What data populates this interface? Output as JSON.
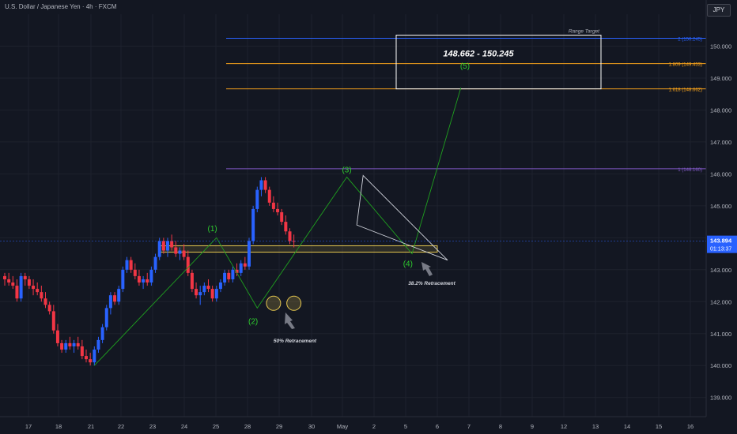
{
  "header": {
    "title": "U.S. Dollar / Japanese Yen · 4h · FXCM",
    "currency": "JPY"
  },
  "colors": {
    "up": "#2962ff",
    "down": "#f23645",
    "wave": "#1fa01f",
    "wave_label": "#2ecc2e",
    "zone": "#e6c84f",
    "fib_blue": "#2962ff",
    "fib_orange": "#f7a21b",
    "fib_purple": "#7e57c2",
    "background": "#131722"
  },
  "chart_data": {
    "type": "candlestick",
    "ylim": [
      138.4,
      151.0
    ],
    "y_ticks": [
      "139.000",
      "140.000",
      "141.000",
      "142.000",
      "143.000",
      "144.000",
      "145.000",
      "146.000",
      "147.000",
      "148.000",
      "149.000",
      "150.000"
    ],
    "x_ticks": [
      "17",
      "18",
      "21",
      "22",
      "23",
      "24",
      "25",
      "28",
      "29",
      "30",
      "May",
      "2",
      "5",
      "6",
      "7",
      "8",
      "9",
      "12",
      "13",
      "14",
      "15",
      "16"
    ],
    "candles": [
      [
        142.8,
        142.9,
        142.5,
        142.7
      ],
      [
        142.7,
        142.9,
        142.5,
        142.6
      ],
      [
        142.6,
        142.8,
        142.4,
        142.5
      ],
      [
        142.5,
        142.7,
        142.0,
        142.1
      ],
      [
        142.1,
        142.9,
        142.0,
        142.8
      ],
      [
        142.8,
        142.9,
        142.5,
        142.7
      ],
      [
        142.7,
        142.8,
        142.4,
        142.5
      ],
      [
        142.5,
        142.7,
        142.2,
        142.4
      ],
      [
        142.4,
        142.6,
        142.2,
        142.3
      ],
      [
        142.3,
        142.5,
        142.0,
        142.1
      ],
      [
        142.1,
        142.3,
        141.8,
        141.9
      ],
      [
        141.9,
        142.0,
        141.6,
        141.7
      ],
      [
        141.7,
        141.9,
        141.0,
        141.1
      ],
      [
        141.1,
        141.3,
        140.6,
        140.7
      ],
      [
        140.7,
        140.8,
        140.4,
        140.5
      ],
      [
        140.5,
        140.8,
        140.4,
        140.7
      ],
      [
        140.7,
        140.9,
        140.5,
        140.6
      ],
      [
        140.6,
        140.8,
        140.4,
        140.7
      ],
      [
        140.7,
        140.9,
        140.5,
        140.6
      ],
      [
        140.6,
        140.8,
        140.2,
        140.3
      ],
      [
        140.3,
        140.5,
        140.1,
        140.2
      ],
      [
        140.2,
        140.4,
        140.0,
        140.1
      ],
      [
        140.1,
        140.6,
        140.0,
        140.5
      ],
      [
        140.5,
        140.9,
        140.4,
        140.8
      ],
      [
        140.8,
        141.3,
        140.7,
        141.2
      ],
      [
        141.2,
        141.9,
        141.1,
        141.8
      ],
      [
        141.8,
        142.3,
        141.6,
        142.2
      ],
      [
        142.2,
        142.3,
        141.9,
        142.0
      ],
      [
        142.0,
        142.5,
        141.9,
        142.4
      ],
      [
        142.4,
        143.1,
        142.3,
        143.0
      ],
      [
        143.0,
        143.4,
        142.9,
        143.3
      ],
      [
        143.3,
        143.4,
        142.9,
        143.0
      ],
      [
        143.0,
        143.2,
        142.7,
        142.8
      ],
      [
        142.8,
        143.0,
        142.5,
        142.6
      ],
      [
        142.6,
        142.8,
        142.4,
        142.7
      ],
      [
        142.7,
        142.9,
        142.5,
        142.6
      ],
      [
        142.6,
        143.1,
        142.5,
        143.0
      ],
      [
        143.0,
        143.5,
        142.9,
        143.4
      ],
      [
        143.4,
        144.0,
        143.3,
        143.9
      ],
      [
        143.9,
        144.0,
        143.5,
        143.6
      ],
      [
        143.6,
        144.0,
        143.4,
        143.9
      ],
      [
        143.9,
        144.1,
        143.6,
        143.7
      ],
      [
        143.7,
        143.9,
        143.4,
        143.5
      ],
      [
        143.5,
        143.7,
        143.3,
        143.6
      ],
      [
        143.6,
        143.8,
        143.3,
        143.4
      ],
      [
        143.4,
        143.6,
        142.8,
        142.9
      ],
      [
        142.9,
        143.0,
        142.3,
        142.4
      ],
      [
        142.4,
        142.6,
        142.1,
        142.2
      ],
      [
        142.2,
        142.5,
        141.9,
        142.3
      ],
      [
        142.3,
        142.6,
        142.2,
        142.5
      ],
      [
        142.5,
        142.7,
        142.3,
        142.4
      ],
      [
        142.4,
        142.5,
        142.0,
        142.1
      ],
      [
        142.1,
        142.5,
        142.0,
        142.4
      ],
      [
        142.4,
        142.7,
        142.3,
        142.6
      ],
      [
        142.6,
        143.0,
        142.5,
        142.9
      ],
      [
        142.9,
        143.0,
        142.6,
        142.7
      ],
      [
        142.7,
        143.1,
        142.6,
        143.0
      ],
      [
        143.0,
        143.2,
        142.8,
        142.9
      ],
      [
        142.9,
        143.3,
        142.8,
        143.2
      ],
      [
        143.2,
        143.4,
        143.0,
        143.1
      ],
      [
        143.1,
        144.0,
        143.0,
        143.9
      ],
      [
        143.9,
        145.0,
        143.8,
        144.9
      ],
      [
        144.9,
        145.6,
        144.8,
        145.5
      ],
      [
        145.5,
        145.9,
        145.3,
        145.8
      ],
      [
        145.8,
        145.9,
        145.4,
        145.5
      ],
      [
        145.5,
        145.6,
        145.0,
        145.1
      ],
      [
        145.1,
        145.3,
        144.8,
        144.9
      ],
      [
        144.9,
        145.1,
        144.7,
        144.8
      ],
      [
        144.8,
        144.9,
        144.4,
        144.5
      ],
      [
        144.5,
        144.7,
        144.1,
        144.2
      ],
      [
        144.2,
        144.3,
        143.8,
        143.9
      ],
      [
        143.9,
        144.1,
        143.7,
        143.894
      ]
    ],
    "fib_levels": [
      {
        "label": "2 (150.245)",
        "value": 150.245
      },
      {
        "label": "1.809 (149.453)",
        "value": 149.453
      },
      {
        "label": "1.618 (148.662)",
        "value": 148.662
      },
      {
        "label": "1 (146.160)",
        "value": 146.16
      }
    ],
    "range_target": {
      "label": "Range Target",
      "text": "148.662 - 150.245",
      "low": 148.662,
      "high": 150.245
    },
    "wave_labels": [
      {
        "label": "(1)",
        "value": 144.0
      },
      {
        "label": "(2)",
        "value": 141.8
      },
      {
        "label": "(3)",
        "value": 145.9
      },
      {
        "label": "(4)",
        "value": 143.5
      },
      {
        "label": "(5)",
        "value": 149.0
      }
    ],
    "annotations": [
      "50% Retracement",
      "38.2% Retracement"
    ],
    "last_price": "143.894",
    "countdown": "01:13:37"
  }
}
